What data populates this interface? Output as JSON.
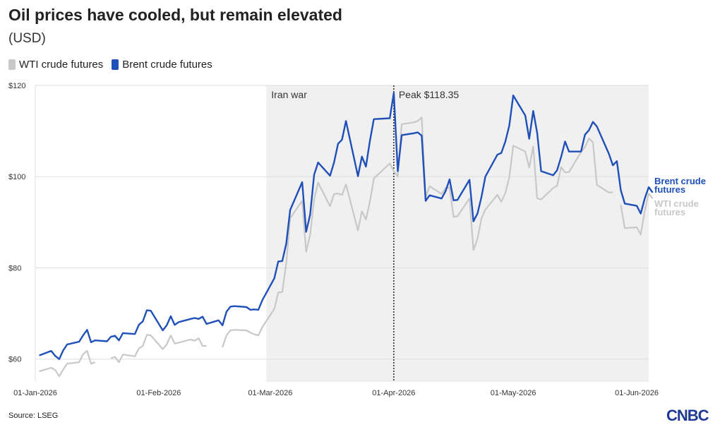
{
  "header": {
    "title": "Oil prices have cooled, but remain elevated",
    "subtitle": "(USD)"
  },
  "footer": {
    "source": "Source: LSEG",
    "logo": "CNBC"
  },
  "chart_data": {
    "type": "line",
    "ylim": [
      55,
      120
    ],
    "xlim": [
      "2026-01-01",
      "2026-06-04"
    ],
    "y_ticks": [
      60,
      80,
      100,
      120
    ],
    "y_tick_labels": [
      "$60",
      "$80",
      "$100",
      "$120"
    ],
    "x_ticks": [
      "2026-01-01",
      "2026-02-01",
      "2026-03-01",
      "2026-04-01",
      "2026-05-01",
      "2026-06-01"
    ],
    "x_tick_labels": [
      "01-Jan-2026",
      "01-Feb-2026",
      "01-Mar-2026",
      "01-Apr-2026",
      "01-May-2026",
      "01-Jun-2026"
    ],
    "grid": "horizontal",
    "shaded_region": {
      "start": "2026-02-28",
      "end": "2026-06-04",
      "label": "Iran war"
    },
    "peak": {
      "date": "2026-04-01",
      "value": 118.35,
      "label": "Peak $118.35"
    },
    "series": [
      {
        "name": "WTI crude futures",
        "color": "#c8c8c8",
        "points": [
          [
            "2026-01-02",
            57.3
          ],
          [
            "2026-01-05",
            58.1
          ],
          [
            "2026-01-06",
            57.6
          ],
          [
            "2026-01-07",
            56.2
          ],
          [
            "2026-01-08",
            57.7
          ],
          [
            "2026-01-09",
            59.0
          ],
          [
            "2026-01-12",
            59.3
          ],
          [
            "2026-01-13",
            61.1
          ],
          [
            "2026-01-14",
            61.8
          ],
          [
            "2026-01-15",
            59.0
          ],
          [
            "2026-01-16",
            59.3
          ],
          null,
          [
            "2026-01-20",
            60.2
          ],
          [
            "2026-01-21",
            60.5
          ],
          [
            "2026-01-22",
            59.3
          ],
          [
            "2026-01-23",
            61.0
          ],
          [
            "2026-01-26",
            60.6
          ],
          [
            "2026-01-27",
            62.3
          ],
          [
            "2026-01-28",
            62.9
          ],
          [
            "2026-01-29",
            65.3
          ],
          [
            "2026-01-30",
            65.2
          ],
          [
            "2026-02-02",
            62.2
          ],
          [
            "2026-02-03",
            63.2
          ],
          [
            "2026-02-04",
            65.2
          ],
          [
            "2026-02-05",
            63.4
          ],
          [
            "2026-02-06",
            63.6
          ],
          [
            "2026-02-09",
            64.3
          ],
          [
            "2026-02-10",
            64.0
          ],
          [
            "2026-02-11",
            64.6
          ],
          [
            "2026-02-12",
            62.9
          ],
          [
            "2026-02-13",
            62.9
          ],
          null,
          [
            "2026-02-17",
            62.6
          ],
          [
            "2026-02-18",
            65.2
          ],
          [
            "2026-02-19",
            66.3
          ],
          [
            "2026-02-20",
            66.4
          ],
          [
            "2026-02-23",
            66.3
          ],
          [
            "2026-02-24",
            65.8
          ],
          [
            "2026-02-25",
            65.4
          ],
          [
            "2026-02-26",
            65.2
          ],
          [
            "2026-02-27",
            67.0
          ],
          [
            "2026-03-02",
            71.0
          ],
          [
            "2026-03-03",
            74.6
          ],
          [
            "2026-03-04",
            74.7
          ],
          [
            "2026-03-05",
            81.0
          ],
          [
            "2026-03-06",
            90.9
          ],
          [
            "2026-03-09",
            94.7
          ],
          [
            "2026-03-10",
            83.5
          ],
          [
            "2026-03-11",
            87.3
          ],
          [
            "2026-03-12",
            95.0
          ],
          [
            "2026-03-13",
            98.7
          ],
          [
            "2026-03-16",
            93.5
          ],
          [
            "2026-03-17",
            96.2
          ],
          [
            "2026-03-18",
            96.3
          ],
          [
            "2026-03-19",
            96.0
          ],
          [
            "2026-03-20",
            98.3
          ],
          [
            "2026-03-23",
            88.2
          ],
          [
            "2026-03-24",
            92.4
          ],
          [
            "2026-03-25",
            90.6
          ],
          [
            "2026-03-26",
            94.5
          ],
          [
            "2026-03-27",
            99.6
          ],
          [
            "2026-03-31",
            102.9
          ],
          [
            "2026-04-01",
            101.2
          ],
          [
            "2026-04-02",
            100.0
          ],
          [
            "2026-04-03",
            111.5
          ],
          [
            "2026-04-06",
            111.9
          ],
          [
            "2026-04-07",
            112.2
          ],
          [
            "2026-04-08",
            113.0
          ],
          [
            "2026-04-09",
            95.5
          ],
          [
            "2026-04-10",
            97.9
          ],
          [
            "2026-04-13",
            96.2
          ],
          [
            "2026-04-14",
            97.5
          ],
          [
            "2026-04-15",
            97.6
          ],
          [
            "2026-04-16",
            91.2
          ],
          [
            "2026-04-17",
            91.3
          ],
          [
            "2026-04-20",
            95.2
          ],
          [
            "2026-04-21",
            83.9
          ],
          [
            "2026-04-22",
            86.3
          ],
          [
            "2026-04-23",
            90.8
          ],
          [
            "2026-04-24",
            92.8
          ],
          [
            "2026-04-27",
            96.0
          ],
          [
            "2026-04-28",
            94.5
          ],
          [
            "2026-04-29",
            96.4
          ],
          [
            "2026-04-30",
            99.9
          ],
          [
            "2026-05-01",
            106.8
          ],
          [
            "2026-05-04",
            105.5
          ],
          [
            "2026-05-05",
            102.0
          ],
          [
            "2026-05-06",
            106.6
          ],
          [
            "2026-05-07",
            95.2
          ],
          [
            "2026-05-08",
            95.0
          ],
          [
            "2026-05-11",
            97.5
          ],
          [
            "2026-05-12",
            98.0
          ],
          [
            "2026-05-13",
            102.1
          ],
          [
            "2026-05-14",
            100.9
          ],
          [
            "2026-05-15",
            101.0
          ],
          [
            "2026-05-18",
            105.4
          ],
          [
            "2026-05-19",
            106.5
          ],
          [
            "2026-05-20",
            108.4
          ],
          [
            "2026-05-21",
            107.5
          ],
          [
            "2026-05-22",
            98.2
          ],
          [
            "2026-05-25",
            96.5
          ],
          [
            "2026-05-26",
            96.6
          ],
          null,
          [
            "2026-05-28",
            93.8
          ],
          [
            "2026-05-29",
            88.7
          ],
          [
            "2026-06-01",
            88.9
          ],
          [
            "2026-06-02",
            87.3
          ],
          [
            "2026-06-03",
            92.5
          ],
          [
            "2026-06-04",
            96.3
          ],
          [
            "2026-06-05",
            95.2
          ]
        ]
      },
      {
        "name": "Brent crude futures",
        "color": "#1f4fb8",
        "points": [
          [
            "2026-01-02",
            60.8
          ],
          [
            "2026-01-05",
            61.8
          ],
          [
            "2026-01-06",
            60.7
          ],
          [
            "2026-01-07",
            60.0
          ],
          [
            "2026-01-08",
            61.9
          ],
          [
            "2026-01-09",
            63.2
          ],
          [
            "2026-01-12",
            63.8
          ],
          [
            "2026-01-13",
            65.2
          ],
          [
            "2026-01-14",
            66.4
          ],
          [
            "2026-01-15",
            63.7
          ],
          [
            "2026-01-16",
            64.1
          ],
          [
            "2026-01-19",
            63.9
          ],
          [
            "2026-01-20",
            64.9
          ],
          [
            "2026-01-21",
            65.1
          ],
          [
            "2026-01-22",
            64.1
          ],
          [
            "2026-01-23",
            65.7
          ],
          [
            "2026-01-26",
            65.5
          ],
          [
            "2026-01-27",
            67.5
          ],
          [
            "2026-01-28",
            68.3
          ],
          [
            "2026-01-29",
            70.7
          ],
          [
            "2026-01-30",
            70.6
          ],
          [
            "2026-02-02",
            66.3
          ],
          [
            "2026-02-03",
            67.4
          ],
          [
            "2026-02-04",
            69.4
          ],
          [
            "2026-02-05",
            67.5
          ],
          [
            "2026-02-06",
            68.1
          ],
          [
            "2026-02-09",
            68.8
          ],
          [
            "2026-02-10",
            69.0
          ],
          [
            "2026-02-11",
            68.8
          ],
          [
            "2026-02-12",
            69.3
          ],
          [
            "2026-02-13",
            67.7
          ],
          [
            "2026-02-16",
            68.5
          ],
          [
            "2026-02-17",
            67.4
          ],
          [
            "2026-02-18",
            70.4
          ],
          [
            "2026-02-19",
            71.5
          ],
          [
            "2026-02-20",
            71.6
          ],
          [
            "2026-02-23",
            71.4
          ],
          [
            "2026-02-24",
            70.8
          ],
          [
            "2026-02-25",
            70.9
          ],
          [
            "2026-02-26",
            70.8
          ],
          [
            "2026-02-27",
            72.9
          ],
          [
            "2026-03-02",
            77.7
          ],
          [
            "2026-03-03",
            81.4
          ],
          [
            "2026-03-04",
            81.5
          ],
          [
            "2026-03-05",
            85.3
          ],
          [
            "2026-03-06",
            92.7
          ],
          [
            "2026-03-09",
            98.8
          ],
          [
            "2026-03-10",
            87.9
          ],
          [
            "2026-03-11",
            91.7
          ],
          [
            "2026-03-12",
            100.4
          ],
          [
            "2026-03-13",
            103.1
          ],
          [
            "2026-03-16",
            100.2
          ],
          [
            "2026-03-17",
            103.1
          ],
          [
            "2026-03-18",
            107.2
          ],
          [
            "2026-03-19",
            108.1
          ],
          [
            "2026-03-20",
            112.2
          ],
          [
            "2026-03-23",
            100.1
          ],
          [
            "2026-03-24",
            104.4
          ],
          [
            "2026-03-25",
            102.2
          ],
          [
            "2026-03-26",
            107.8
          ],
          [
            "2026-03-27",
            112.6
          ],
          [
            "2026-03-31",
            112.8
          ],
          [
            "2026-04-01",
            118.35
          ],
          [
            "2026-04-02",
            101.2
          ],
          [
            "2026-04-03",
            109.1
          ],
          [
            "2026-04-06",
            109.5
          ],
          [
            "2026-04-07",
            109.7
          ],
          [
            "2026-04-08",
            109.0
          ],
          [
            "2026-04-09",
            94.7
          ],
          [
            "2026-04-10",
            95.9
          ],
          [
            "2026-04-13",
            95.2
          ],
          [
            "2026-04-14",
            96.8
          ],
          [
            "2026-04-15",
            99.4
          ],
          [
            "2026-04-16",
            94.8
          ],
          [
            "2026-04-17",
            94.9
          ],
          [
            "2026-04-20",
            99.3
          ],
          [
            "2026-04-21",
            90.2
          ],
          [
            "2026-04-22",
            91.9
          ],
          [
            "2026-04-23",
            95.5
          ],
          [
            "2026-04-24",
            100.0
          ],
          [
            "2026-04-27",
            104.8
          ],
          [
            "2026-04-28",
            105.2
          ],
          [
            "2026-04-29",
            107.7
          ],
          [
            "2026-04-30",
            111.2
          ],
          [
            "2026-05-01",
            117.8
          ],
          [
            "2026-05-04",
            113.4
          ],
          [
            "2026-05-05",
            108.3
          ],
          [
            "2026-05-06",
            114.4
          ],
          [
            "2026-05-07",
            109.6
          ],
          [
            "2026-05-08",
            101.2
          ],
          [
            "2026-05-11",
            100.3
          ],
          [
            "2026-05-12",
            101.4
          ],
          [
            "2026-05-13",
            104.3
          ],
          [
            "2026-05-14",
            107.7
          ],
          [
            "2026-05-15",
            105.5
          ],
          [
            "2026-05-18",
            105.5
          ],
          [
            "2026-05-19",
            109.2
          ],
          [
            "2026-05-20",
            110.2
          ],
          [
            "2026-05-21",
            112.0
          ],
          [
            "2026-05-22",
            111.0
          ],
          [
            "2026-05-25",
            105.0
          ],
          [
            "2026-05-26",
            102.5
          ],
          [
            "2026-05-27",
            103.4
          ],
          [
            "2026-05-28",
            97.0
          ],
          [
            "2026-05-29",
            94.1
          ],
          [
            "2026-06-01",
            93.6
          ],
          [
            "2026-06-02",
            91.9
          ],
          [
            "2026-06-03",
            95.2
          ],
          [
            "2026-06-04",
            97.7
          ],
          [
            "2026-06-05",
            96.5
          ]
        ]
      }
    ],
    "end_labels": [
      {
        "lines": [
          "Brent crude",
          "futures"
        ],
        "color": "#1f4fb8"
      },
      {
        "lines": [
          "WTI crude",
          "futures"
        ],
        "color": "#c8c8c8"
      }
    ]
  }
}
